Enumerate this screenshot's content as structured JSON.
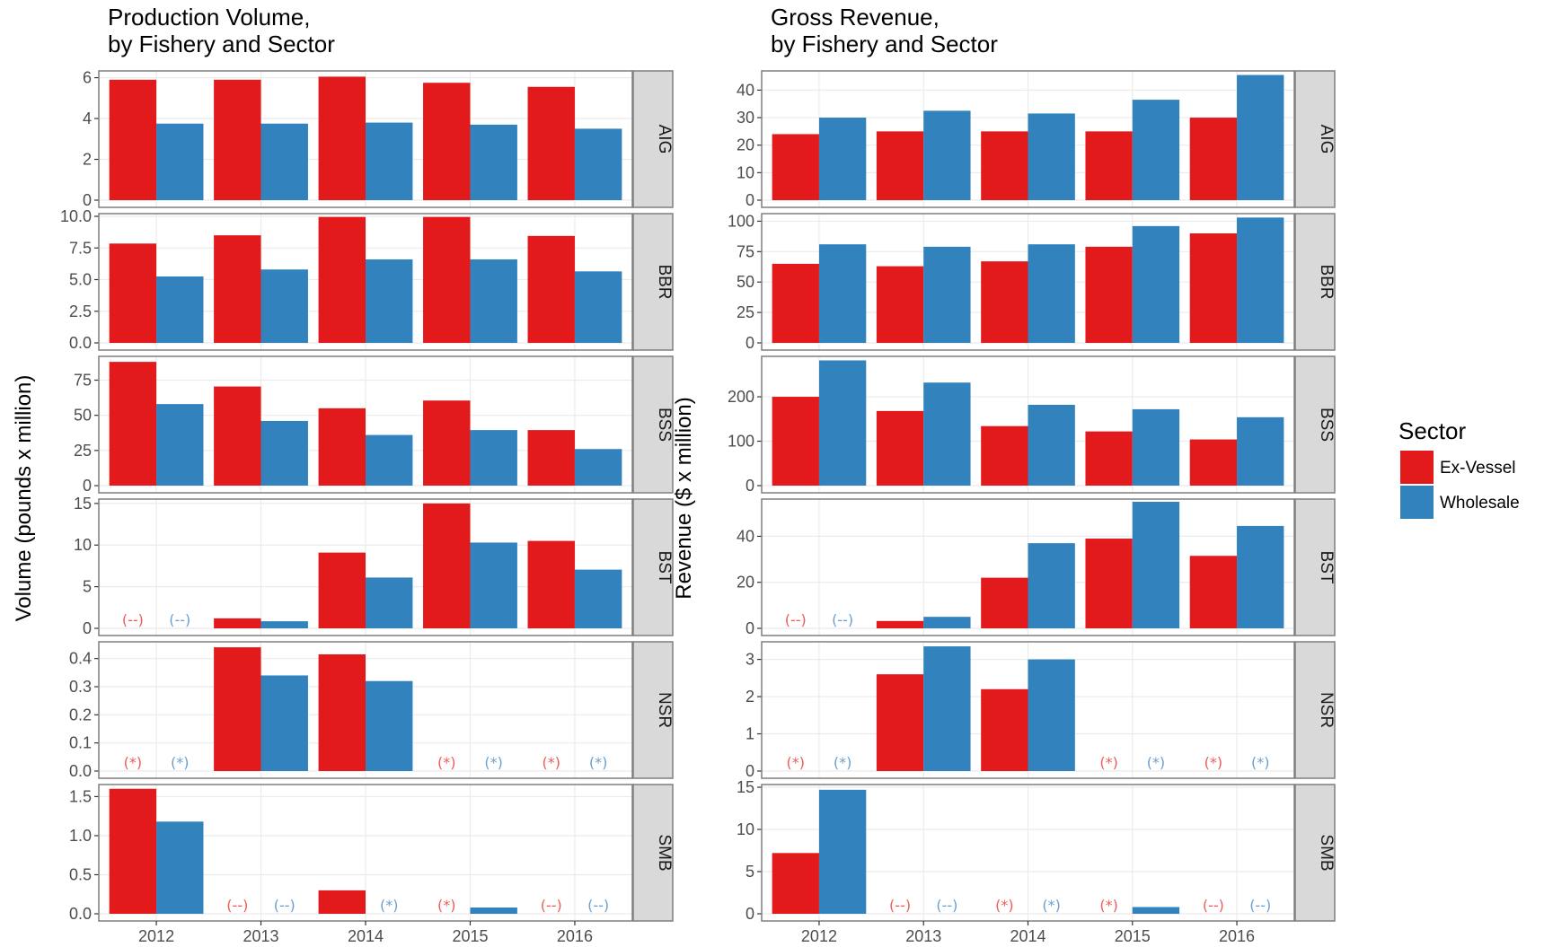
{
  "chart_data": [
    {
      "type": "bar",
      "title": "Production Volume,",
      "subtitle": "by Fishery and Sector",
      "ylabel": "Volume (pounds x million)",
      "categories": [
        "2012",
        "2013",
        "2014",
        "2015",
        "2016"
      ],
      "series_names": [
        "Ex-Vessel",
        "Wholesale"
      ],
      "panels": [
        {
          "facet": "AIG",
          "ylim": [
            0,
            6.2
          ],
          "ticks": [
            "0",
            "2",
            "4",
            "6"
          ],
          "tick_values": [
            0,
            2,
            4,
            6
          ],
          "series": [
            {
              "name": "Ex-Vessel",
              "values": [
                5.9,
                5.9,
                6.05,
                5.75,
                5.55
              ],
              "notes": [
                "",
                "",
                "",
                "",
                ""
              ]
            },
            {
              "name": "Wholesale",
              "values": [
                3.75,
                3.75,
                3.8,
                3.7,
                3.5
              ],
              "notes": [
                "",
                "",
                "",
                "",
                ""
              ]
            }
          ]
        },
        {
          "facet": "BBR",
          "ylim": [
            0,
            10
          ],
          "ticks": [
            "0.0",
            "2.5",
            "5.0",
            "7.5",
            "10.0"
          ],
          "tick_values": [
            0,
            2.5,
            5,
            7.5,
            10
          ],
          "series": [
            {
              "name": "Ex-Vessel",
              "values": [
                7.85,
                8.5,
                9.95,
                9.95,
                8.45
              ],
              "notes": [
                "",
                "",
                "",
                "",
                ""
              ]
            },
            {
              "name": "Wholesale",
              "values": [
                5.25,
                5.8,
                6.6,
                6.6,
                5.65
              ],
              "notes": [
                "",
                "",
                "",
                "",
                ""
              ]
            }
          ]
        },
        {
          "facet": "BSS",
          "ylim": [
            0,
            90
          ],
          "ticks": [
            "0",
            "25",
            "50",
            "75"
          ],
          "tick_values": [
            0,
            25,
            50,
            75
          ],
          "series": [
            {
              "name": "Ex-Vessel",
              "values": [
                88,
                70.5,
                55,
                60.5,
                39.5
              ],
              "notes": [
                "",
                "",
                "",
                "",
                ""
              ]
            },
            {
              "name": "Wholesale",
              "values": [
                58,
                46,
                36,
                39.5,
                26
              ],
              "notes": [
                "",
                "",
                "",
                "",
                ""
              ]
            }
          ]
        },
        {
          "facet": "BST",
          "ylim": [
            0,
            15.2
          ],
          "ticks": [
            "0",
            "5",
            "10",
            "15"
          ],
          "tick_values": [
            0,
            5,
            10,
            15
          ],
          "series": [
            {
              "name": "Ex-Vessel",
              "values": [
                0,
                1.2,
                9.1,
                15,
                10.5
              ],
              "notes": [
                "(--)",
                "",
                "",
                "",
                ""
              ]
            },
            {
              "name": "Wholesale",
              "values": [
                0,
                0.85,
                6.1,
                10.3,
                7.05
              ],
              "notes": [
                "(--)",
                "",
                "",
                "",
                ""
              ]
            }
          ]
        },
        {
          "facet": "NSR",
          "ylim": [
            0,
            0.45
          ],
          "ticks": [
            "0.0",
            "0.1",
            "0.2",
            "0.3",
            "0.4"
          ],
          "tick_values": [
            0,
            0.1,
            0.2,
            0.3,
            0.4
          ],
          "series": [
            {
              "name": "Ex-Vessel",
              "values": [
                0,
                0.44,
                0.415,
                0,
                0
              ],
              "notes": [
                "(*)",
                "",
                "",
                "(*)",
                "(*)"
              ]
            },
            {
              "name": "Wholesale",
              "values": [
                0,
                0.34,
                0.32,
                0,
                0
              ],
              "notes": [
                "(*)",
                "",
                "",
                "(*)",
                "(*)"
              ]
            }
          ]
        },
        {
          "facet": "SMB",
          "ylim": [
            0,
            1.62
          ],
          "ticks": [
            "0.0",
            "0.5",
            "1.0",
            "1.5"
          ],
          "tick_values": [
            0,
            0.5,
            1,
            1.5
          ],
          "series": [
            {
              "name": "Ex-Vessel",
              "values": [
                1.6,
                0,
                0.3,
                0,
                0
              ],
              "notes": [
                "",
                "(--)",
                "",
                "(*)",
                "(--)"
              ]
            },
            {
              "name": "Wholesale",
              "values": [
                1.18,
                0,
                0,
                0.08,
                0
              ],
              "notes": [
                "",
                "(--)",
                "(*)",
                "",
                "(--)"
              ]
            }
          ]
        }
      ]
    },
    {
      "type": "bar",
      "title": "Gross Revenue,",
      "subtitle": "by Fishery and Sector",
      "ylabel": "Revenue ($ x million)",
      "categories": [
        "2012",
        "2013",
        "2014",
        "2015",
        "2016"
      ],
      "series_names": [
        "Ex-Vessel",
        "Wholesale"
      ],
      "panels": [
        {
          "facet": "AIG",
          "ylim": [
            0,
            46
          ],
          "ticks": [
            "0",
            "10",
            "20",
            "30",
            "40"
          ],
          "tick_values": [
            0,
            10,
            20,
            30,
            40
          ],
          "series": [
            {
              "name": "Ex-Vessel",
              "values": [
                24,
                25,
                25,
                25,
                30
              ],
              "notes": [
                "",
                "",
                "",
                "",
                ""
              ]
            },
            {
              "name": "Wholesale",
              "values": [
                30,
                32.5,
                31.5,
                36.5,
                45.5
              ],
              "notes": [
                "",
                "",
                "",
                "",
                ""
              ]
            }
          ]
        },
        {
          "facet": "BBR",
          "ylim": [
            0,
            104
          ],
          "ticks": [
            "0",
            "25",
            "50",
            "75",
            "100"
          ],
          "tick_values": [
            0,
            25,
            50,
            75,
            100
          ],
          "series": [
            {
              "name": "Ex-Vessel",
              "values": [
                65,
                63,
                67,
                79,
                90
              ],
              "notes": [
                "",
                "",
                "",
                "",
                ""
              ]
            },
            {
              "name": "Wholesale",
              "values": [
                81,
                79,
                81,
                96,
                103
              ],
              "notes": [
                "",
                "",
                "",
                "",
                ""
              ]
            }
          ]
        },
        {
          "facet": "BSS",
          "ylim": [
            0,
            285
          ],
          "ticks": [
            "0",
            "100",
            "200"
          ],
          "tick_values": [
            0,
            100,
            200
          ],
          "series": [
            {
              "name": "Ex-Vessel",
              "values": [
                200,
                168,
                134,
                122,
                104
              ],
              "notes": [
                "",
                "",
                "",
                "",
                ""
              ]
            },
            {
              "name": "Wholesale",
              "values": [
                282,
                232,
                182,
                172,
                154
              ],
              "notes": [
                "",
                "",
                "",
                "",
                ""
              ]
            }
          ]
        },
        {
          "facet": "BST",
          "ylim": [
            0,
            55
          ],
          "ticks": [
            "0",
            "20",
            "40"
          ],
          "tick_values": [
            0,
            20,
            40
          ],
          "series": [
            {
              "name": "Ex-Vessel",
              "values": [
                0,
                3.2,
                22,
                39,
                31.5
              ],
              "notes": [
                "(--)",
                "",
                "",
                "",
                ""
              ]
            },
            {
              "name": "Wholesale",
              "values": [
                0,
                5,
                37,
                55,
                44.5
              ],
              "notes": [
                "(--)",
                "",
                "",
                "",
                ""
              ]
            }
          ]
        },
        {
          "facet": "NSR",
          "ylim": [
            0,
            3.4
          ],
          "ticks": [
            "0",
            "1",
            "2",
            "3"
          ],
          "tick_values": [
            0,
            1,
            2,
            3
          ],
          "series": [
            {
              "name": "Ex-Vessel",
              "values": [
                0,
                2.6,
                2.2,
                0,
                0
              ],
              "notes": [
                "(*)",
                "",
                "",
                "(*)",
                "(*)"
              ]
            },
            {
              "name": "Wholesale",
              "values": [
                0,
                3.35,
                3,
                0,
                0
              ],
              "notes": [
                "(*)",
                "",
                "",
                "(*)",
                "(*)"
              ]
            }
          ]
        },
        {
          "facet": "SMB",
          "ylim": [
            0,
            15
          ],
          "ticks": [
            "0",
            "5",
            "10",
            "15"
          ],
          "tick_values": [
            0,
            5,
            10,
            15
          ],
          "series": [
            {
              "name": "Ex-Vessel",
              "values": [
                7.2,
                0,
                0,
                0,
                0
              ],
              "notes": [
                "",
                "(--)",
                "(*)",
                "(*)",
                "(--)"
              ]
            },
            {
              "name": "Wholesale",
              "values": [
                14.7,
                0,
                0,
                0.8,
                0
              ],
              "notes": [
                "",
                "(--)",
                "(*)",
                "",
                "(--)"
              ]
            }
          ]
        }
      ]
    }
  ],
  "legend": {
    "title": "Sector",
    "placement": "right",
    "items": [
      {
        "label": "Ex-Vessel",
        "color": "#e31a1c"
      },
      {
        "label": "Wholesale",
        "color": "#3182bd"
      }
    ]
  },
  "colors": {
    "ex_vessel": "#e31a1c",
    "wholesale": "#3182bd",
    "note_ex_vessel": "#ef5a5a",
    "note_wholesale": "#6a9fd1",
    "strip_background": "#d9d9d9",
    "grid": "#ebebeb"
  }
}
